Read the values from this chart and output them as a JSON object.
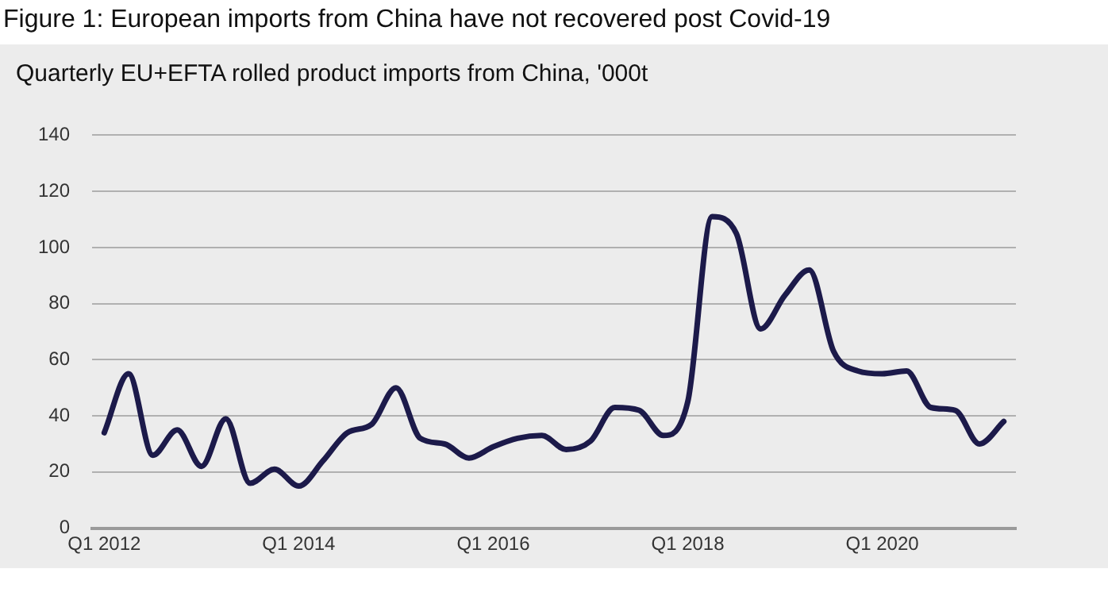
{
  "chart_data": {
    "type": "line",
    "title": "Figure 1: European imports from China have not recovered post Covid-19",
    "subtitle": "Quarterly EU+EFTA rolled product imports from China, '000t",
    "categories": [
      "Q1 2012",
      null,
      null,
      null,
      null,
      null,
      null,
      null,
      "Q1 2014",
      null,
      null,
      null,
      null,
      null,
      null,
      null,
      "Q1 2016",
      null,
      null,
      null,
      null,
      null,
      null,
      null,
      "Q1 2018",
      null,
      null,
      null,
      null,
      null,
      null,
      null,
      "Q1 2020",
      null,
      null,
      null,
      null,
      null
    ],
    "series": [
      {
        "color": "#1c1a4a",
        "values": [
          34,
          55,
          26,
          35,
          22,
          39,
          16,
          21,
          15,
          24,
          34,
          37,
          50,
          32,
          30,
          25,
          29,
          32,
          33,
          28,
          31,
          43,
          42,
          33,
          45,
          111,
          105,
          71,
          83,
          92,
          63,
          56,
          55,
          56,
          43,
          42,
          30,
          38
        ]
      }
    ],
    "ylim": [
      0,
      140
    ],
    "yticks": [
      0,
      20,
      40,
      60,
      80,
      100,
      120,
      140
    ],
    "grid": "y",
    "legend": false,
    "marker": "none",
    "line_style": "solid"
  }
}
